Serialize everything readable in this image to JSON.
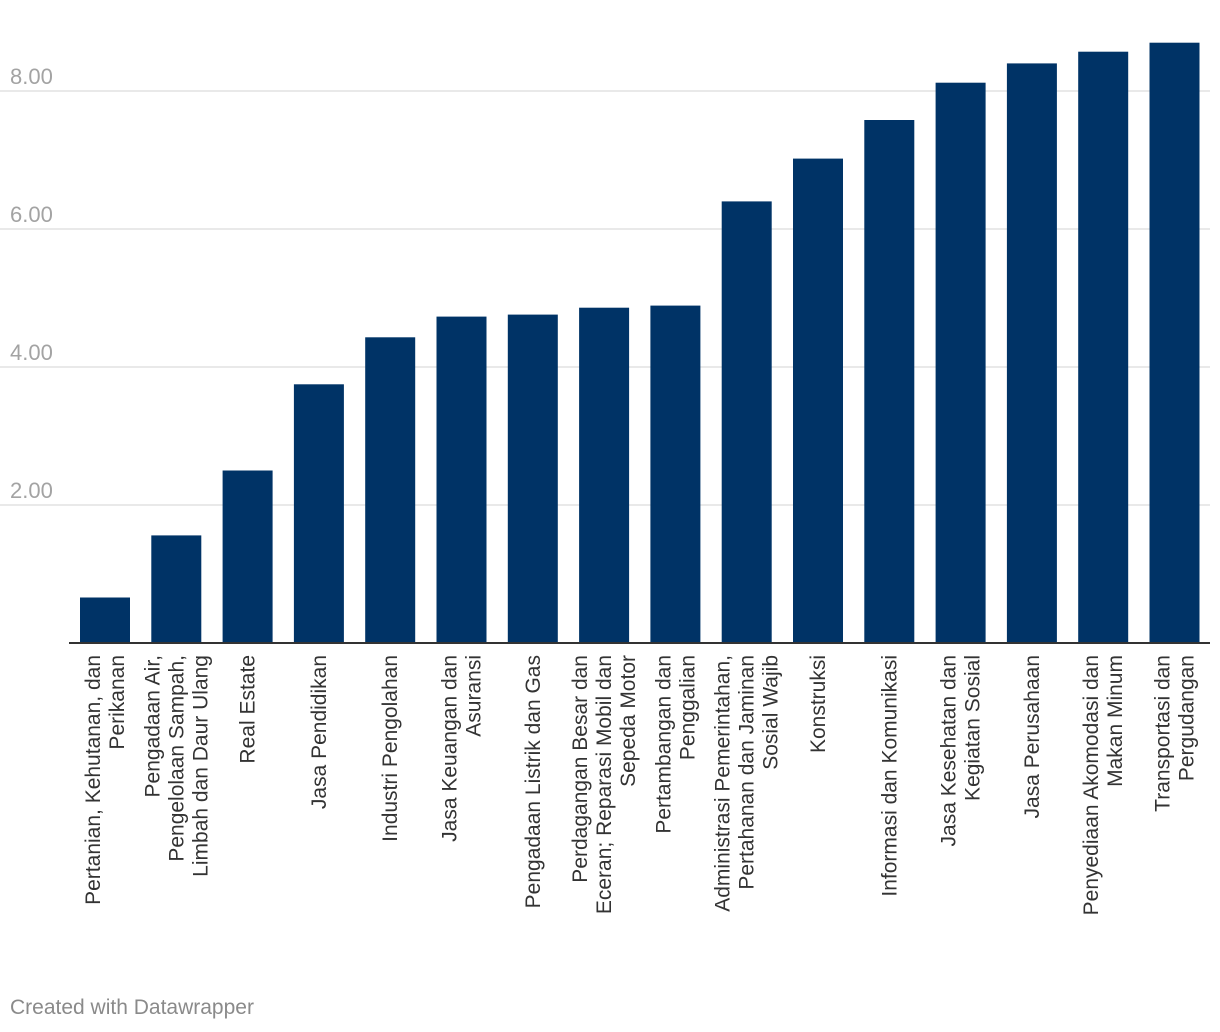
{
  "credit": "Created with Datawrapper",
  "colors": {
    "bar": "#003366",
    "grid": "#e2e2e2",
    "axis": "#333333",
    "tick_text": "#a3a3a3"
  },
  "chart_data": {
    "type": "bar",
    "title": "",
    "xlabel": "",
    "ylabel": "",
    "ylim": [
      0,
      8.8
    ],
    "yticks": [
      2,
      4,
      6,
      8
    ],
    "ytick_labels": [
      "2.00",
      "4.00",
      "6.00",
      "8.00"
    ],
    "grid": true,
    "categories": [
      [
        "Pertanian, Kehutanan, dan",
        "Perikanan"
      ],
      [
        "Pengadaan Air,",
        "Pengelolaan Sampah,",
        "Limbah dan Daur Ulang"
      ],
      [
        "Real Estate"
      ],
      [
        "Jasa Pendidikan"
      ],
      [
        "Industri Pengolahan"
      ],
      [
        "Jasa Keuangan dan",
        "Asuransi"
      ],
      [
        "Pengadaan Listrik dan Gas"
      ],
      [
        "Perdagangan Besar dan",
        "Eceran; Reparasi Mobil dan",
        "Sepeda Motor"
      ],
      [
        "Pertambangan dan",
        "Penggalian"
      ],
      [
        "Administrasi Pemerintahan,",
        "Pertahanan dan Jaminan",
        "Sosial Wajib"
      ],
      [
        "Konstruksi"
      ],
      [
        "Informasi dan Komunikasi"
      ],
      [
        "Jasa Kesehatan dan",
        "Kegiatan Sosial"
      ],
      [
        "Jasa Perusahaan"
      ],
      [
        "Penyediaan Akomodasi dan",
        "Makan Minum"
      ],
      [
        "Transportasi dan",
        "Pergudangan"
      ]
    ],
    "values": [
      0.66,
      1.56,
      2.5,
      3.75,
      4.43,
      4.73,
      4.76,
      4.86,
      4.89,
      6.4,
      7.02,
      7.58,
      8.12,
      8.4,
      8.57,
      8.7
    ]
  }
}
